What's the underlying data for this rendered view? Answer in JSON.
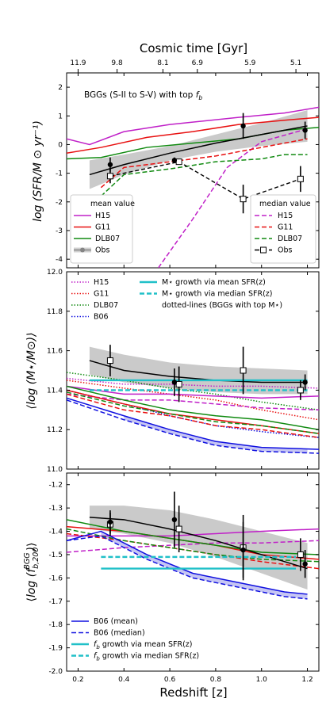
{
  "top_axis": {
    "label": "Cosmic time [Gyr]",
    "ticks": [
      {
        "z": 0.2,
        "label": "11.9"
      },
      {
        "z": 0.37,
        "label": "9.8"
      },
      {
        "z": 0.57,
        "label": "8.1"
      },
      {
        "z": 0.72,
        "label": "6.9"
      },
      {
        "z": 0.95,
        "label": "5.9"
      },
      {
        "z": 1.15,
        "label": "5.1"
      }
    ]
  },
  "bottom_axis": {
    "label": "Redshift [z]",
    "ticks": [
      "0.2",
      "0.4",
      "0.6",
      "0.8",
      "1.0",
      "1.2"
    ]
  },
  "chart_data": [
    {
      "type": "line",
      "id": "sfr",
      "title": "BGGs (S-II to S-V) with top f_b",
      "title_plain": "BGGs (S-II to S-V) with top ",
      "title_sym": "f",
      "title_sub": "b",
      "ylabel": "log (SFR/M ⊙ yr⁻¹)",
      "ylim": [
        -4.3,
        2.5
      ],
      "xlim": [
        0.15,
        1.25
      ],
      "yticks": [
        "2",
        "1",
        "0",
        "-1",
        "-2",
        "-3",
        "-4"
      ],
      "legend_mean_title": "mean value",
      "legend_median_title": "median value",
      "legend_items": [
        "H15",
        "G11",
        "DLB07",
        "Obs"
      ],
      "colors": {
        "H15": "#c020c8",
        "G11": "#e81010",
        "DLB07": "#108a10",
        "Obs": "#000000",
        "band": "#c4c4c4"
      },
      "series": [
        {
          "name": "H15",
          "style": "solid",
          "color": "#c020c8",
          "x": [
            0.15,
            0.25,
            0.4,
            0.6,
            0.9,
            1.1,
            1.25
          ],
          "y": [
            0.2,
            0.0,
            0.45,
            0.7,
            0.95,
            1.1,
            1.3
          ]
        },
        {
          "name": "G11",
          "style": "solid",
          "color": "#e81010",
          "x": [
            0.15,
            0.3,
            0.5,
            0.7,
            0.9,
            1.1,
            1.25
          ],
          "y": [
            -0.3,
            -0.1,
            0.25,
            0.45,
            0.7,
            0.85,
            0.95
          ]
        },
        {
          "name": "DLB07",
          "style": "solid",
          "color": "#108a10",
          "x": [
            0.15,
            0.3,
            0.5,
            0.7,
            0.9,
            1.1,
            1.25
          ],
          "y": [
            -0.5,
            -0.45,
            -0.1,
            0.05,
            0.2,
            0.5,
            0.6
          ]
        },
        {
          "name": "H15",
          "style": "dashed",
          "color": "#c020c8",
          "x": [
            0.55,
            0.7,
            0.85,
            1.0,
            1.2
          ],
          "y": [
            -4.3,
            -2.6,
            -0.8,
            0.1,
            0.55
          ]
        },
        {
          "name": "G11",
          "style": "dashed",
          "color": "#e81010",
          "x": [
            0.3,
            0.4,
            0.6,
            0.8,
            1.0,
            1.2
          ],
          "y": [
            -1.5,
            -0.8,
            -0.6,
            -0.4,
            -0.1,
            0.2
          ]
        },
        {
          "name": "DLB07",
          "style": "dashed",
          "color": "#108a10",
          "x": [
            0.3,
            0.4,
            0.6,
            0.8,
            1.0,
            1.1,
            1.2
          ],
          "y": [
            -1.8,
            -1.05,
            -0.85,
            -0.6,
            -0.5,
            -0.35,
            -0.35
          ]
        },
        {
          "name": "Obs mean fit",
          "style": "solid",
          "color": "#000000",
          "x": [
            0.25,
            0.4,
            0.6,
            0.8,
            1.0,
            1.2
          ],
          "y": [
            -1.05,
            -0.7,
            -0.3,
            0.05,
            0.35,
            0.65
          ]
        }
      ],
      "band": {
        "x": [
          0.25,
          0.4,
          0.6,
          0.8,
          1.0,
          1.2
        ],
        "upper": [
          -0.55,
          -0.35,
          -0.05,
          0.35,
          0.75,
          1.2
        ],
        "lower": [
          -1.55,
          -1.05,
          -0.55,
          -0.25,
          -0.05,
          0.1
        ]
      },
      "obs_mean_points": [
        {
          "x": 0.34,
          "y": -0.7,
          "err": 0.25
        },
        {
          "x": 0.62,
          "y": -0.55,
          "err": 0.1
        },
        {
          "x": 0.92,
          "y": 0.65,
          "err": 0.45
        },
        {
          "x": 1.19,
          "y": 0.5,
          "err": 0.3
        }
      ],
      "obs_median_points": [
        {
          "x": 0.34,
          "y": -1.1,
          "err": 0.25
        },
        {
          "x": 0.64,
          "y": -0.6,
          "err": 0.1
        },
        {
          "x": 0.92,
          "y": -1.9,
          "err": 0.5
        },
        {
          "x": 1.17,
          "y": -1.2,
          "err": 0.45
        }
      ]
    },
    {
      "type": "line",
      "id": "mstar",
      "ylabel": "⟨log (M⋆/M⊙)⟩",
      "ylim": [
        11.0,
        12.0
      ],
      "xlim": [
        0.15,
        1.25
      ],
      "yticks": [
        "12.0",
        "11.8",
        "11.6",
        "11.4",
        "11.2",
        "11.0"
      ],
      "legend_left": [
        {
          "name": "H15",
          "color": "#c020c8",
          "style": "dotted"
        },
        {
          "name": "G11",
          "color": "#e81010",
          "style": "dotted"
        },
        {
          "name": "DLB07",
          "color": "#108a10",
          "style": "dotted"
        },
        {
          "name": "B06",
          "color": "#1010e0",
          "style": "dotted"
        }
      ],
      "legend_right": [
        {
          "name": "M⋆ growth via mean SFR(z)",
          "color": "#20c0c8",
          "style": "solid"
        },
        {
          "name": "M⋆ growth via median SFR(z)",
          "color": "#20c0c8",
          "style": "dashed"
        }
      ],
      "legend_note": "dotted-lines (BGGs with top M⋆)",
      "series": [
        {
          "name": "H15",
          "style": "dotted",
          "color": "#c020c8",
          "x": [
            0.15,
            0.4,
            0.6,
            0.8,
            1.0,
            1.25
          ],
          "y": [
            11.46,
            11.43,
            11.43,
            11.42,
            11.42,
            11.41
          ]
        },
        {
          "name": "G11",
          "style": "dotted",
          "color": "#e81010",
          "x": [
            0.15,
            0.4,
            0.6,
            0.8,
            1.0,
            1.25
          ],
          "y": [
            11.45,
            11.41,
            11.38,
            11.35,
            11.3,
            11.25
          ]
        },
        {
          "name": "DLB07",
          "style": "dotted",
          "color": "#108a10",
          "x": [
            0.15,
            0.4,
            0.6,
            0.8,
            1.0,
            1.25
          ],
          "y": [
            11.49,
            11.45,
            11.41,
            11.38,
            11.34,
            11.3
          ]
        },
        {
          "name": "B06",
          "style": "dotted",
          "color": "#1010e0",
          "x": [
            0.15,
            0.4,
            0.6,
            0.8,
            1.0,
            1.25
          ],
          "y": [
            11.4,
            11.33,
            11.27,
            11.22,
            11.19,
            11.16
          ]
        },
        {
          "name": "H15",
          "style": "solid",
          "color": "#c020c8",
          "x": [
            0.15,
            0.4,
            0.6,
            0.8,
            1.0,
            1.25
          ],
          "y": [
            11.42,
            11.38,
            11.38,
            11.37,
            11.36,
            11.37
          ]
        },
        {
          "name": "H15",
          "style": "dashed",
          "color": "#c020c8",
          "x": [
            0.15,
            0.4,
            0.6,
            0.8,
            1.0,
            1.25
          ],
          "y": [
            11.38,
            11.35,
            11.35,
            11.33,
            11.31,
            11.3
          ]
        },
        {
          "name": "G11",
          "style": "solid",
          "color": "#e81010",
          "x": [
            0.15,
            0.4,
            0.6,
            0.8,
            1.0,
            1.25
          ],
          "y": [
            11.4,
            11.33,
            11.28,
            11.25,
            11.22,
            11.18
          ]
        },
        {
          "name": "G11",
          "style": "dashed",
          "color": "#e81010",
          "x": [
            0.15,
            0.4,
            0.6,
            0.8,
            1.0,
            1.25
          ],
          "y": [
            11.38,
            11.3,
            11.27,
            11.22,
            11.2,
            11.16
          ]
        },
        {
          "name": "DLB07",
          "style": "solid",
          "color": "#108a10",
          "x": [
            0.15,
            0.4,
            0.6,
            0.8,
            1.0,
            1.25
          ],
          "y": [
            11.42,
            11.35,
            11.3,
            11.27,
            11.25,
            11.2
          ]
        },
        {
          "name": "DLB07",
          "style": "dashed",
          "color": "#108a10",
          "x": [
            0.15,
            0.4,
            0.6,
            0.8,
            1.0,
            1.25
          ],
          "y": [
            11.39,
            11.32,
            11.28,
            11.24,
            11.22,
            11.18
          ]
        },
        {
          "name": "B06",
          "style": "solid",
          "color": "#1010e0",
          "x": [
            0.15,
            0.4,
            0.6,
            0.8,
            1.0,
            1.25
          ],
          "y": [
            11.36,
            11.27,
            11.2,
            11.14,
            11.11,
            11.1
          ]
        },
        {
          "name": "B06",
          "style": "dashed",
          "color": "#1010e0",
          "x": [
            0.15,
            0.4,
            0.6,
            0.8,
            1.0,
            1.25
          ],
          "y": [
            11.35,
            11.25,
            11.18,
            11.12,
            11.09,
            11.08
          ]
        },
        {
          "name": "Obs fit",
          "style": "solid",
          "color": "#000000",
          "x": [
            0.25,
            0.4,
            0.6,
            0.8,
            1.0,
            1.2
          ],
          "y": [
            11.55,
            11.5,
            11.47,
            11.45,
            11.44,
            11.44
          ]
        },
        {
          "name": "M⋆ growth via mean SFR(z)",
          "style": "solid",
          "color": "#20c0c8",
          "x": [
            0.25,
            1.2
          ],
          "y": [
            11.45,
            11.45
          ]
        },
        {
          "name": "M⋆ growth via median SFR(z)",
          "style": "dashed",
          "color": "#20c0c8",
          "x": [
            0.25,
            1.2
          ],
          "y": [
            11.4,
            11.4
          ]
        }
      ],
      "band": {
        "x": [
          0.25,
          0.4,
          0.6,
          0.8,
          1.0,
          1.2
        ],
        "upper": [
          11.62,
          11.58,
          11.54,
          11.52,
          11.51,
          11.5
        ],
        "lower": [
          11.48,
          11.44,
          11.41,
          11.39,
          11.38,
          11.38
        ]
      },
      "blue_band": {
        "x": [
          0.4,
          0.6,
          0.8,
          1.0,
          1.2
        ],
        "upper": [
          11.27,
          11.2,
          11.14,
          11.11,
          11.1
        ],
        "lower": [
          11.25,
          11.18,
          11.12,
          11.09,
          11.08
        ]
      },
      "obs_mean_points": [
        {
          "x": 0.62,
          "y": 11.44,
          "err": 0.07
        },
        {
          "x": 1.19,
          "y": 11.44,
          "err": 0.04
        }
      ],
      "obs_median_points": [
        {
          "x": 0.34,
          "y": 11.55,
          "err": 0.08
        },
        {
          "x": 0.64,
          "y": 11.43,
          "err": 0.09
        },
        {
          "x": 0.92,
          "y": 11.5,
          "err": 0.12
        },
        {
          "x": 1.17,
          "y": 11.4,
          "err": 0.05
        }
      ]
    },
    {
      "type": "line",
      "id": "fb",
      "ylabel": "⟨log (f_b,200^BGG)⟩",
      "ylabel_plain": "log (",
      "ylabel_sym": "f",
      "ylabel_sub": "b,200",
      "ylabel_sup": "BGG",
      "ylim": [
        -2.0,
        -1.15
      ],
      "xlim": [
        0.15,
        1.25
      ],
      "yticks": [
        "-1.2",
        "-1.3",
        "-1.4",
        "-1.5",
        "-1.6",
        "-1.7",
        "-1.8",
        "-1.9",
        "-2.0"
      ],
      "legend": [
        {
          "name": "B06 (mean)",
          "color": "#1010e0",
          "style": "solid"
        },
        {
          "name": "B06 (median)",
          "color": "#1010e0",
          "style": "dashed"
        },
        {
          "name": "f_b growth via mean SFR(z)",
          "label_rest": " growth via mean SFR(z)",
          "color": "#20c0c8",
          "style": "solid"
        },
        {
          "name": "f_b growth via median SFR(z)",
          "label_rest": " growth via median SFR(z)",
          "color": "#20c0c8",
          "style": "dashed"
        }
      ],
      "series": [
        {
          "name": "H15",
          "style": "solid",
          "color": "#c020c8",
          "x": [
            0.15,
            0.4,
            0.6,
            0.8,
            1.0,
            1.25
          ],
          "y": [
            -1.42,
            -1.42,
            -1.42,
            -1.41,
            -1.4,
            -1.39
          ]
        },
        {
          "name": "H15",
          "style": "dashed",
          "color": "#c020c8",
          "x": [
            0.15,
            0.4,
            0.6,
            0.8,
            1.0,
            1.25
          ],
          "y": [
            -1.49,
            -1.47,
            -1.46,
            -1.45,
            -1.45,
            -1.44
          ]
        },
        {
          "name": "G11",
          "style": "solid",
          "color": "#e81010",
          "x": [
            0.15,
            0.4,
            0.6,
            0.8,
            1.0,
            1.25
          ],
          "y": [
            -1.38,
            -1.4,
            -1.43,
            -1.46,
            -1.5,
            -1.52
          ]
        },
        {
          "name": "G11",
          "style": "dashed",
          "color": "#e81010",
          "x": [
            0.15,
            0.4,
            0.6,
            0.8,
            1.0,
            1.25
          ],
          "y": [
            -1.41,
            -1.44,
            -1.47,
            -1.5,
            -1.53,
            -1.56
          ]
        },
        {
          "name": "DLB07",
          "style": "solid",
          "color": "#108a10",
          "x": [
            0.15,
            0.4,
            0.6,
            0.8,
            1.0,
            1.25
          ],
          "y": [
            -1.35,
            -1.4,
            -1.43,
            -1.46,
            -1.49,
            -1.5
          ]
        },
        {
          "name": "DLB07",
          "style": "dashed",
          "color": "#108a10",
          "x": [
            0.15,
            0.4,
            0.6,
            0.8,
            1.0,
            1.25
          ],
          "y": [
            -1.39,
            -1.44,
            -1.47,
            -1.5,
            -1.52,
            -1.53
          ]
        },
        {
          "name": "B06 (mean)",
          "style": "solid",
          "color": "#1010e0",
          "x": [
            0.15,
            0.3,
            0.5,
            0.7,
            0.9,
            1.1,
            1.2
          ],
          "y": [
            -1.44,
            -1.4,
            -1.5,
            -1.58,
            -1.62,
            -1.66,
            -1.67
          ]
        },
        {
          "name": "B06 (median)",
          "style": "dashed",
          "color": "#1010e0",
          "x": [
            0.15,
            0.3,
            0.5,
            0.7,
            0.9,
            1.1,
            1.2
          ],
          "y": [
            -1.44,
            -1.42,
            -1.52,
            -1.6,
            -1.64,
            -1.68,
            -1.69
          ]
        },
        {
          "name": "Obs fit",
          "style": "solid",
          "color": "#000000",
          "x": [
            0.25,
            0.4,
            0.6,
            0.8,
            1.0,
            1.2
          ],
          "y": [
            -1.34,
            -1.35,
            -1.39,
            -1.44,
            -1.5,
            -1.56
          ]
        },
        {
          "name": "f_b growth via mean SFR(z)",
          "style": "solid",
          "color": "#20c0c8",
          "x": [
            0.3,
            1.15
          ],
          "y": [
            -1.56,
            -1.56
          ]
        },
        {
          "name": "f_b growth via median SFR(z)",
          "style": "dashed",
          "color": "#20c0c8",
          "x": [
            0.3,
            1.15
          ],
          "y": [
            -1.51,
            -1.51
          ]
        }
      ],
      "band": {
        "x": [
          0.25,
          0.4,
          0.6,
          0.8,
          1.0,
          1.2
        ],
        "upper": [
          -1.29,
          -1.29,
          -1.31,
          -1.35,
          -1.4,
          -1.45
        ],
        "lower": [
          -1.39,
          -1.41,
          -1.45,
          -1.51,
          -1.58,
          -1.65
        ]
      },
      "blue_band": {
        "x": [
          0.3,
          0.5,
          0.7,
          0.9,
          1.1,
          1.2
        ],
        "upper": [
          -1.4,
          -1.5,
          -1.58,
          -1.62,
          -1.66,
          -1.67
        ],
        "lower": [
          -1.42,
          -1.52,
          -1.6,
          -1.64,
          -1.68,
          -1.69
        ]
      },
      "obs_mean_points": [
        {
          "x": 0.34,
          "y": -1.36,
          "err": 0.05
        },
        {
          "x": 0.62,
          "y": -1.35,
          "err": 0.12
        },
        {
          "x": 0.92,
          "y": -1.48,
          "err": 0.12
        },
        {
          "x": 1.19,
          "y": -1.54,
          "err": 0.06
        }
      ],
      "obs_median_points": [
        {
          "x": 0.34,
          "y": -1.37,
          "err": 0.05
        },
        {
          "x": 0.64,
          "y": -1.39,
          "err": 0.1
        },
        {
          "x": 0.92,
          "y": -1.47,
          "err": 0.14
        },
        {
          "x": 1.17,
          "y": -1.5,
          "err": 0.07
        }
      ]
    }
  ]
}
